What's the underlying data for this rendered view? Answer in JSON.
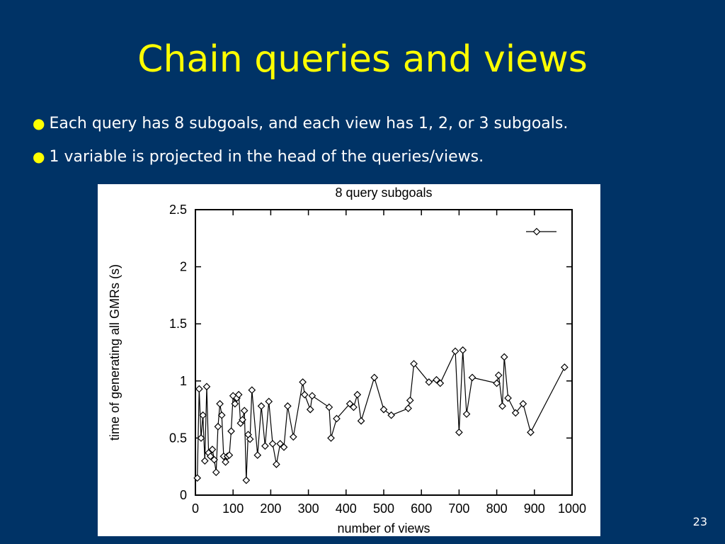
{
  "slide": {
    "title": "Chain queries and views",
    "bullets": [
      "Each query has 8 subgoals, and each view has 1, 2, or 3 subgoals.",
      "1 variable is projected in the head of the queries/views."
    ],
    "page_number": "23"
  },
  "colors": {
    "background": "#003366",
    "title": "#ffff00",
    "bullet_text": "#ffffff",
    "bullet_dot": "#ffff00"
  },
  "chart_data": {
    "type": "line",
    "title": "8 query subgoals",
    "xlabel": "number of views",
    "ylabel": "time of generating all GMRs (s)",
    "xlim": [
      0,
      1000
    ],
    "ylim": [
      0,
      2.5
    ],
    "xticks": [
      0,
      100,
      200,
      300,
      400,
      500,
      600,
      700,
      800,
      900,
      1000
    ],
    "yticks": [
      0,
      0.5,
      1,
      1.5,
      2,
      2.5
    ],
    "xtick_labels": [
      "0",
      "100",
      "200",
      "300",
      "400",
      "500",
      "600",
      "700",
      "800",
      "900",
      "1000"
    ],
    "ytick_labels": [
      "0",
      "0.5",
      "1",
      "1.5",
      "2",
      "2.5"
    ],
    "grid": false,
    "legend": "top-right",
    "marker": "diamond",
    "series": [
      {
        "x": [
          5,
          10,
          15,
          20,
          25,
          30,
          35,
          40,
          45,
          50,
          55,
          60,
          65,
          70,
          75,
          80,
          85,
          90,
          95,
          100,
          105,
          110,
          115,
          120,
          125,
          130,
          135,
          140,
          145,
          150,
          165,
          175,
          185,
          195,
          205,
          215,
          225,
          235,
          245,
          260,
          285,
          290,
          305,
          310,
          355,
          360,
          375,
          410,
          420,
          430,
          440,
          475,
          500,
          520,
          565,
          570,
          580,
          620,
          640,
          650,
          690,
          700,
          710,
          720,
          735,
          800,
          805,
          815,
          820,
          830,
          850,
          870,
          890,
          980
        ],
        "y": [
          0.15,
          0.93,
          0.5,
          0.7,
          0.3,
          0.95,
          0.37,
          0.34,
          0.4,
          0.31,
          0.2,
          0.6,
          0.8,
          0.7,
          0.34,
          0.29,
          0.34,
          0.35,
          0.56,
          0.87,
          0.8,
          0.85,
          0.88,
          0.63,
          0.66,
          0.74,
          0.13,
          0.53,
          0.49,
          0.92,
          0.35,
          0.78,
          0.43,
          0.82,
          0.45,
          0.27,
          0.45,
          0.42,
          0.78,
          0.51,
          0.99,
          0.88,
          0.75,
          0.87,
          0.77,
          0.5,
          0.67,
          0.8,
          0.77,
          0.88,
          0.65,
          1.03,
          0.75,
          0.7,
          0.76,
          0.83,
          1.15,
          0.99,
          1.01,
          0.98,
          1.26,
          0.55,
          1.27,
          0.71,
          1.03,
          0.98,
          1.05,
          0.78,
          1.21,
          0.85,
          0.72,
          0.8,
          0.55,
          1.12
        ]
      }
    ]
  }
}
